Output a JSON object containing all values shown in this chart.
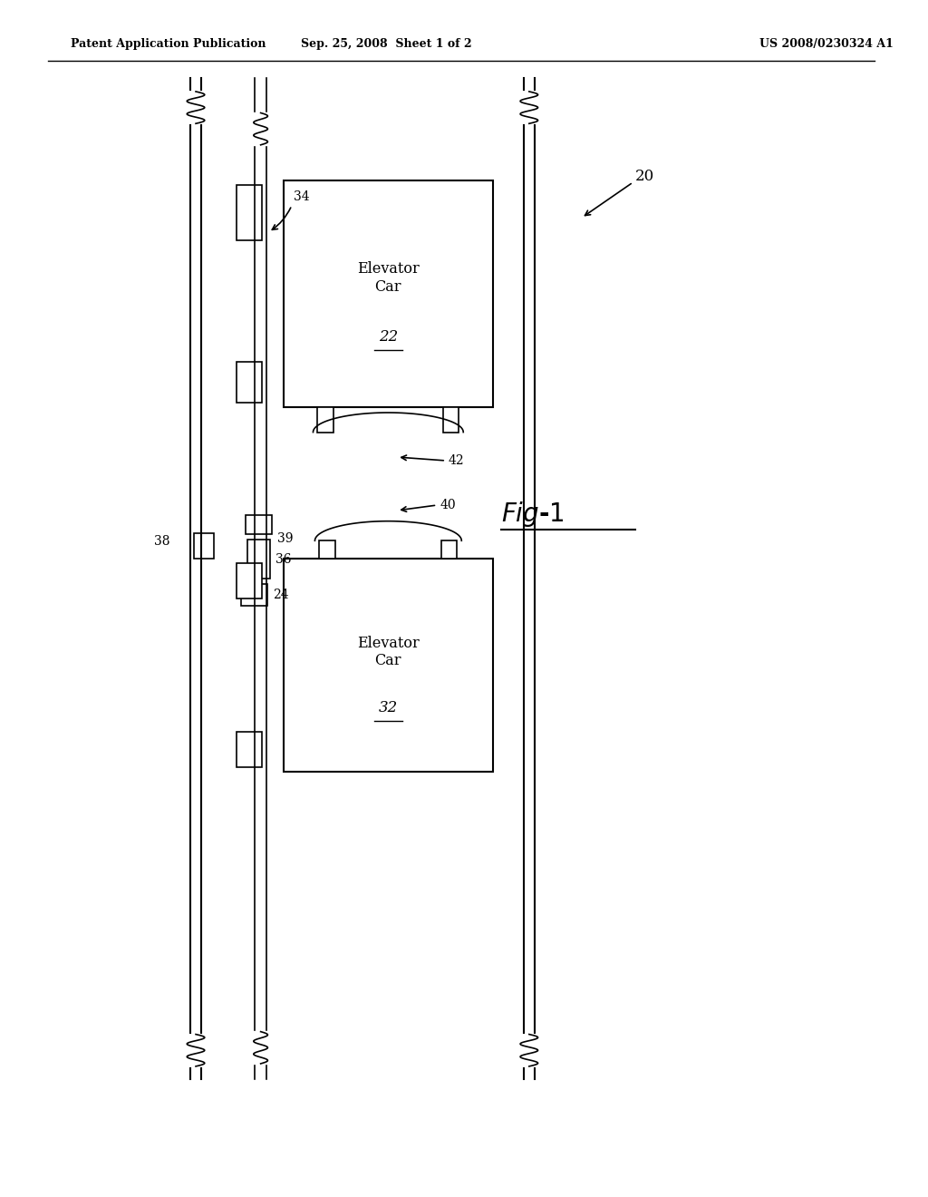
{
  "bg_color": "#ffffff",
  "header_left": "Patent Application Publication",
  "header_mid": "Sep. 25, 2008  Sheet 1 of 2",
  "header_right": "US 2008/0230324 A1",
  "ref_20": "20",
  "ref_22": "22",
  "ref_24": "24",
  "ref_32": "32",
  "ref_34": "34",
  "ref_36": "36",
  "ref_38": "38",
  "ref_39": "39",
  "ref_40": "40",
  "ref_42": "42"
}
